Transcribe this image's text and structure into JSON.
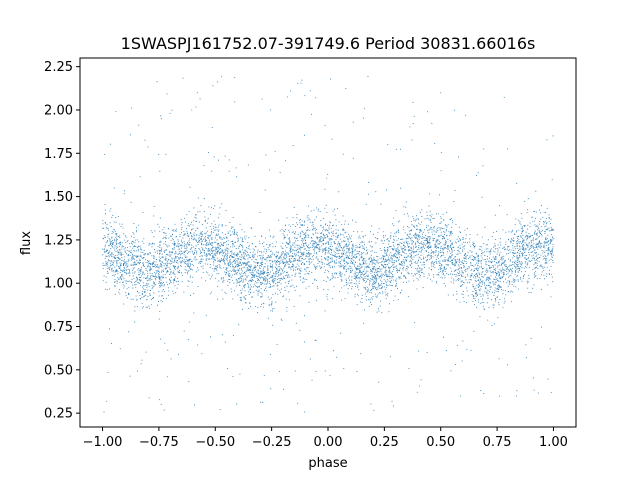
{
  "chart_data": {
    "type": "scatter",
    "title": "1SWASPJ161752.07-391749.6 Period 30831.66016s",
    "xlabel": "phase",
    "ylabel": "flux",
    "xlim": [
      -1.1,
      1.1
    ],
    "ylim": [
      0.17,
      2.3
    ],
    "xticks": [
      -1.0,
      -0.75,
      -0.5,
      -0.25,
      0.0,
      0.25,
      0.5,
      0.75,
      1.0
    ],
    "xtick_labels": [
      "−1.00",
      "−0.75",
      "−0.50",
      "−0.25",
      "0.00",
      "0.25",
      "0.50",
      "0.75",
      "1.00"
    ],
    "yticks": [
      0.25,
      0.5,
      0.75,
      1.0,
      1.25,
      1.5,
      1.75,
      2.0,
      2.25
    ],
    "ytick_labels": [
      "0.25",
      "0.50",
      "0.75",
      "1.00",
      "1.25",
      "1.50",
      "1.75",
      "2.00",
      "2.25"
    ],
    "grid": false,
    "marker_color": "#1f77b4",
    "series": [
      {
        "phase_range": [
          -1.0,
          1.0
        ],
        "baseline_flux": 1.27,
        "primary_minimum": {
          "phase": 0.7,
          "flux": 1.03
        },
        "secondary_minimum": {
          "phase": -0.3,
          "flux": 1.05
        },
        "scatter_sigma": 0.1,
        "outlier_range": [
          0.25,
          2.2
        ]
      }
    ]
  }
}
